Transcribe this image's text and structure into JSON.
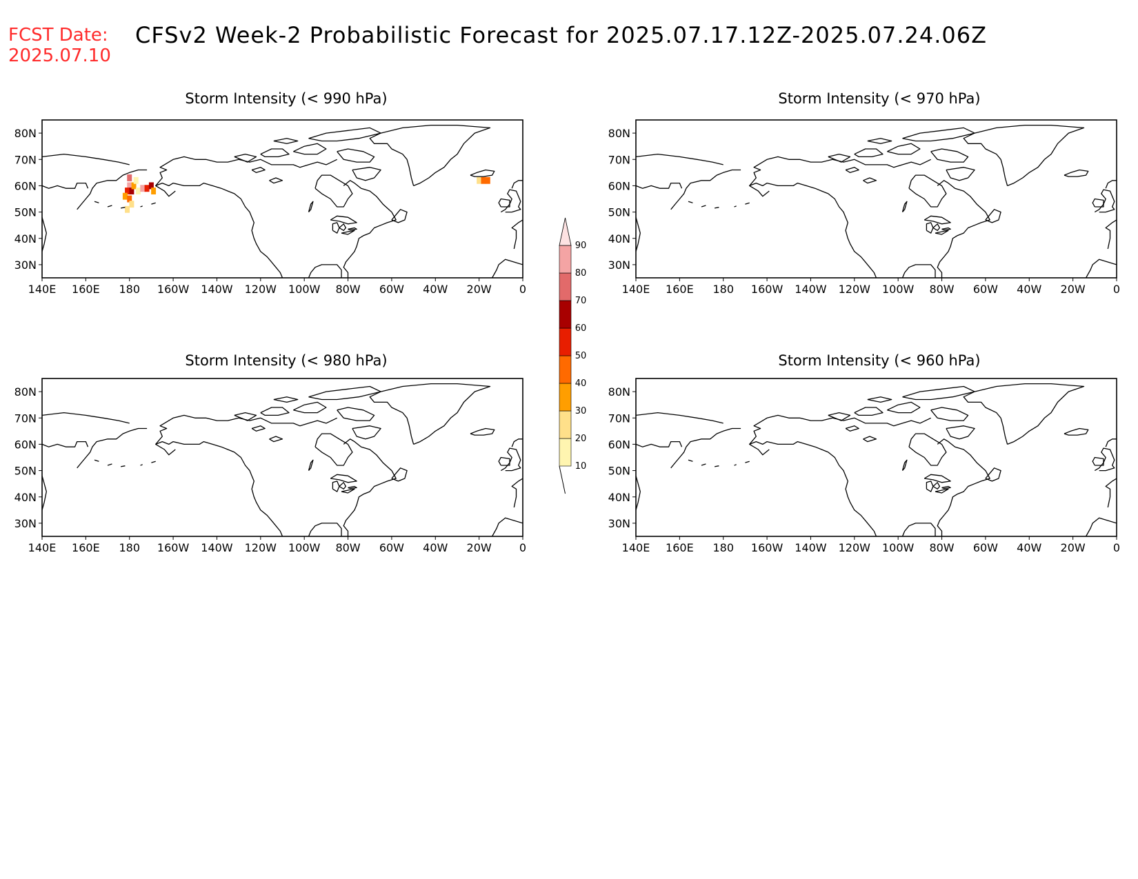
{
  "header": {
    "fcst_label": "FCST Date:",
    "fcst_date": "2025.07.10",
    "title": "CFSv2 Week-2 Probabilistic Forecast for 2025.07.17.12Z-2025.07.24.06Z"
  },
  "map_axes": {
    "lon_ticks": [
      "140E",
      "160E",
      "180",
      "160W",
      "140W",
      "120W",
      "100W",
      "80W",
      "60W",
      "40W",
      "20W",
      "0"
    ],
    "lat_ticks": [
      "80N",
      "70N",
      "60N",
      "50N",
      "40N",
      "30N"
    ]
  },
  "panels": [
    {
      "id": "p990",
      "title": "Storm Intensity (< 990 hPa)",
      "has_data": true
    },
    {
      "id": "p970",
      "title": "Storm Intensity (< 970 hPa)",
      "has_data": false
    },
    {
      "id": "p980",
      "title": "Storm Intensity (< 980 hPa)",
      "has_data": false
    },
    {
      "id": "p960",
      "title": "Storm Intensity (< 960 hPa)",
      "has_data": false
    }
  ],
  "colorbar": {
    "levels": [
      "10",
      "20",
      "30",
      "40",
      "50",
      "60",
      "70",
      "80",
      "90"
    ],
    "colors": [
      "#fff5b0",
      "#ffe08a",
      "#ff9e00",
      "#ff6a00",
      "#e81e00",
      "#a80000",
      "#e26a6a",
      "#f4a4a4",
      "#fde2e2"
    ]
  },
  "probability_cells": [
    {
      "panel": "p990",
      "lon": 180,
      "lat": 63,
      "value": 70
    },
    {
      "panel": "p990",
      "lon": 180,
      "lat": 60,
      "value": 80
    },
    {
      "panel": "p990",
      "lon": 179,
      "lat": 58,
      "value": 50
    },
    {
      "panel": "p990",
      "lon": 181,
      "lat": 58,
      "value": 60
    },
    {
      "panel": "p990",
      "lon": 178,
      "lat": 56,
      "value": 30
    },
    {
      "panel": "p990",
      "lon": 180,
      "lat": 55,
      "value": 40
    },
    {
      "panel": "p990",
      "lon": 181,
      "lat": 53,
      "value": 20
    },
    {
      "panel": "p990",
      "lon": 182,
      "lat": 60,
      "value": 30
    },
    {
      "panel": "p990",
      "lon": 184,
      "lat": 58,
      "value": 10
    },
    {
      "panel": "p990",
      "lon": 186,
      "lat": 59,
      "value": 80
    },
    {
      "panel": "p990",
      "lon": 188,
      "lat": 59,
      "value": 50
    },
    {
      "panel": "p990",
      "lon": 190,
      "lat": 60,
      "value": 60
    },
    {
      "panel": "p990",
      "lon": 191,
      "lat": 58,
      "value": 30
    },
    {
      "panel": "p990",
      "lon": 183,
      "lat": 62,
      "value": 10
    },
    {
      "panel": "p990",
      "lon": 179,
      "lat": 51,
      "value": 20
    },
    {
      "panel": "p990",
      "lon": 340,
      "lat": 62,
      "value": 20
    },
    {
      "panel": "p990",
      "lon": 342,
      "lat": 62,
      "value": 40
    },
    {
      "panel": "p990",
      "lon": 344,
      "lat": 62,
      "value": 40
    }
  ]
}
